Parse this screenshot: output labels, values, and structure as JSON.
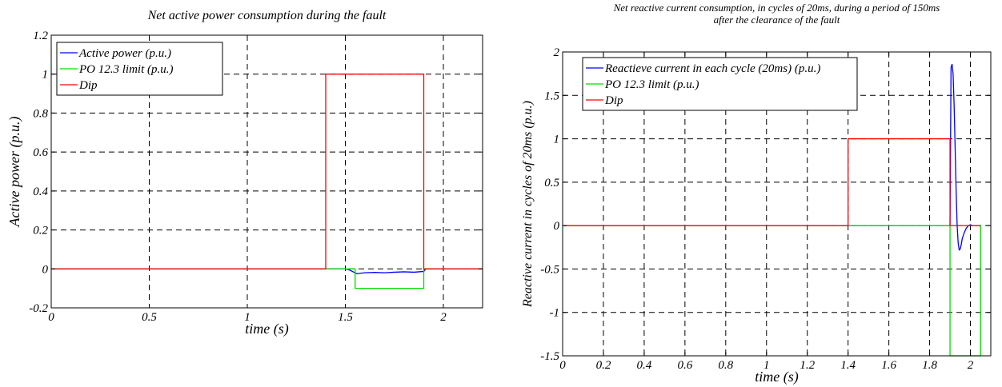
{
  "chart_data": [
    {
      "type": "line",
      "title": "Net active power consumption during the fault",
      "xlabel": "time (s)",
      "ylabel": "Active power (p.u.)",
      "xlim": [
        0,
        2.2
      ],
      "ylim": [
        -0.2,
        1.2
      ],
      "x_ticks": [
        0,
        0.5,
        1,
        1.5,
        2
      ],
      "x_tick_labels": [
        "0",
        "0.5",
        "1",
        "1.5",
        "2"
      ],
      "y_ticks": [
        -0.2,
        0,
        0.2,
        0.4,
        0.6,
        0.8,
        1,
        1.2
      ],
      "y_tick_labels": [
        "-0.2",
        "0",
        "0.2",
        "0.4",
        "0.6",
        "0.8",
        "1",
        "1.2"
      ],
      "grid": true,
      "legend_position": "top-left",
      "series": [
        {
          "name": "Active power (p.u.)",
          "color": "#0000ff",
          "x": [
            0,
            1.4,
            1.5,
            1.52,
            1.55,
            1.56,
            1.58,
            1.6,
            1.65,
            1.7,
            1.75,
            1.8,
            1.85,
            1.9,
            1.91,
            2.2
          ],
          "y": [
            0,
            0,
            0,
            -0.005,
            -0.02,
            -0.025,
            -0.022,
            -0.02,
            -0.018,
            -0.02,
            -0.017,
            -0.015,
            -0.017,
            -0.013,
            0,
            0
          ]
        },
        {
          "name": "PO 12.3 limit (p.u.)",
          "color": "#00dd00",
          "x": [
            0,
            1.55,
            1.55,
            1.9,
            1.9,
            2.2
          ],
          "y": [
            0,
            0,
            -0.1,
            -0.1,
            0,
            0
          ]
        },
        {
          "name": "Dip",
          "color": "#ff0000",
          "x": [
            0,
            1.4,
            1.4,
            1.9,
            1.9,
            2.2
          ],
          "y": [
            0,
            0,
            1,
            1,
            0,
            0
          ]
        }
      ]
    },
    {
      "type": "line",
      "title": "Net reactive current consumption, in cycles of 20ms,  during a period of 150ms after the clearance of the fault",
      "title_lines": [
        "Net reactive current consumption, in cycles of 20ms,  during a period of 150ms",
        "after the clearance of the fault"
      ],
      "xlabel": "time (s)",
      "ylabel": "Reactive current in cycles of 20ms (p.u.)",
      "xlim": [
        0,
        2.1
      ],
      "ylim": [
        -1.5,
        2
      ],
      "x_ticks": [
        0,
        0.2,
        0.4,
        0.6,
        0.8,
        1,
        1.2,
        1.4,
        1.6,
        1.8,
        2
      ],
      "x_tick_labels": [
        "0",
        "0.2",
        "0.4",
        "0.6",
        "0.8",
        "1",
        "1.2",
        "1.4",
        "1.6",
        "1.8",
        "2"
      ],
      "y_ticks": [
        -1.5,
        -1,
        -0.5,
        0,
        0.5,
        1,
        1.5,
        2
      ],
      "y_tick_labels": [
        "-1.5",
        "-1",
        "-0.5",
        "0",
        "0.5",
        "1",
        "1.5",
        "2"
      ],
      "grid": true,
      "legend_position": "top-left",
      "series": [
        {
          "name": "Reactieve current in each cycle (20ms) (p.u.)",
          "color": "#0000ff",
          "x": [
            0,
            1.9,
            1.905,
            1.91,
            1.915,
            1.92,
            1.925,
            1.93,
            1.935,
            1.94,
            1.945,
            1.95,
            1.955,
            1.96,
            1.97,
            1.98,
            1.99,
            2.0,
            2.01,
            2.02,
            2.05
          ],
          "y": [
            0,
            0,
            1.82,
            1.86,
            1.75,
            1.4,
            0.9,
            0.4,
            0.0,
            -0.2,
            -0.28,
            -0.27,
            -0.22,
            -0.15,
            -0.08,
            -0.03,
            0.0,
            0.01,
            0.0,
            0.0,
            0.0
          ]
        },
        {
          "name": "PO 12.3 limit (p.u.)",
          "color": "#00dd00",
          "x": [
            0,
            1.9,
            1.9,
            2.05,
            2.05
          ],
          "y": [
            0,
            0,
            -1.5,
            -1.5,
            0
          ]
        },
        {
          "name": "Dip",
          "color": "#ff0000",
          "x": [
            0,
            1.4,
            1.4,
            1.9,
            1.9,
            2.05
          ],
          "y": [
            0,
            0,
            1,
            1,
            0,
            0
          ]
        }
      ]
    }
  ]
}
